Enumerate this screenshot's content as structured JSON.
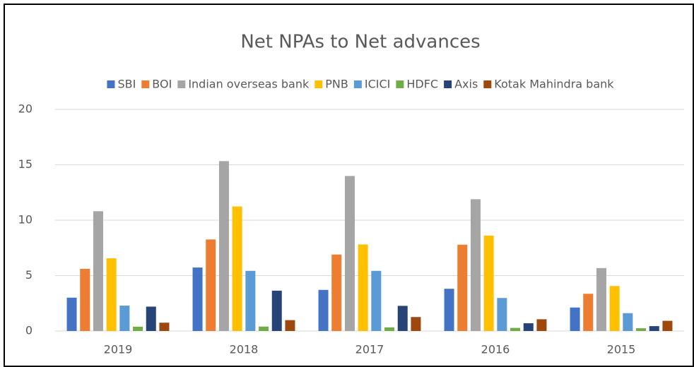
{
  "chart_data": {
    "type": "bar",
    "title": "Net NPAs to Net advances",
    "categories": [
      "2019",
      "2018",
      "2017",
      "2016",
      "2015"
    ],
    "series": [
      {
        "name": "SBI",
        "color": "#4472c4",
        "values": [
          3.01,
          5.73,
          3.71,
          3.81,
          2.12
        ]
      },
      {
        "name": "BOI",
        "color": "#ed7d31",
        "values": [
          5.61,
          8.26,
          6.9,
          7.79,
          3.36
        ]
      },
      {
        "name": "Indian overseas bank",
        "color": "#a5a5a5",
        "values": [
          10.81,
          15.33,
          13.99,
          11.89,
          5.68
        ]
      },
      {
        "name": "PNB",
        "color": "#ffc000",
        "values": [
          6.56,
          11.24,
          7.81,
          8.61,
          4.06
        ]
      },
      {
        "name": "ICICI",
        "color": "#5b9bd5",
        "values": [
          2.29,
          5.43,
          5.43,
          2.98,
          1.61
        ]
      },
      {
        "name": "HDFC",
        "color": "#70ad47",
        "values": [
          0.39,
          0.4,
          0.33,
          0.28,
          0.25
        ]
      },
      {
        "name": "Axis",
        "color": "#264478",
        "values": [
          2.2,
          3.64,
          2.27,
          0.7,
          0.44
        ]
      },
      {
        "name": "Kotak Mahindra bank",
        "color": "#9e480e",
        "values": [
          0.75,
          0.98,
          1.26,
          1.06,
          0.92
        ]
      }
    ],
    "ylim": [
      0,
      20
    ],
    "yticks": [
      0,
      5,
      10,
      15,
      20
    ],
    "grid": true,
    "legend": "top"
  }
}
